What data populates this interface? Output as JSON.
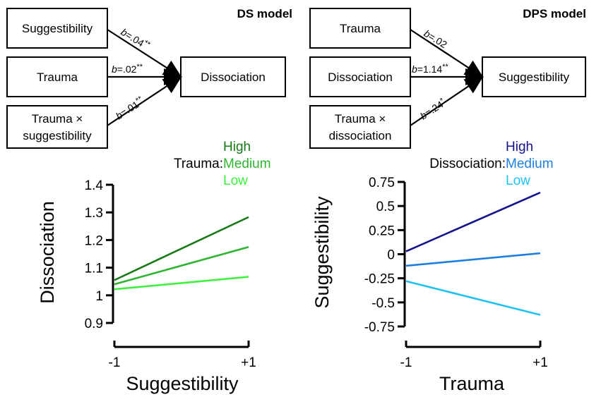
{
  "colors": {
    "trauma_high": "#177a17",
    "trauma_medium": "#2fb52f",
    "trauma_low": "#3ff23f",
    "dissoc_high": "#14148c",
    "dissoc_medium": "#1f7fe0",
    "dissoc_low": "#1fc2f2"
  },
  "ds_model": {
    "title": "DS model",
    "inputs": [
      "Suggestibility",
      "Trauma",
      "Trauma ×",
      "suggestibility"
    ],
    "outcome": "Dissociation",
    "paths": [
      {
        "b": "b",
        "value": "=.04",
        "sig": "**"
      },
      {
        "b": "b",
        "value": "=.02",
        "sig": "**"
      },
      {
        "b": "b",
        "value": "=.01",
        "sig": "**"
      }
    ]
  },
  "dps_model": {
    "title": "DPS model",
    "inputs": [
      "Trauma",
      "Dissociation",
      "Trauma ×",
      "dissociation"
    ],
    "outcome": "Suggestibility",
    "paths": [
      {
        "b": "b",
        "value": "=.02",
        "sig": ""
      },
      {
        "b": "b",
        "value": "=1.14",
        "sig": "**"
      },
      {
        "b": "b",
        "value": "=.24",
        "sig": "*"
      }
    ]
  },
  "chart_data": [
    {
      "type": "line",
      "xlabel": "Suggestibility",
      "ylabel": "Dissociation",
      "x": [
        -1,
        1
      ],
      "x_tick_labels": [
        "-1",
        "+1"
      ],
      "y_ticks": [
        0.9,
        1,
        1.1,
        1.2,
        1.3,
        1.4
      ],
      "y_tick_labels": [
        "0.9",
        "1",
        "1.1",
        "1.2",
        "1.3",
        "1.4"
      ],
      "ylim": [
        0.9,
        1.4
      ],
      "legend_title": "Trauma:",
      "legend_placement": "top",
      "series": [
        {
          "name": "High",
          "values": [
            1.055,
            1.283
          ],
          "color": "#177a17"
        },
        {
          "name": "Medium",
          "values": [
            1.04,
            1.175
          ],
          "color": "#2fb52f"
        },
        {
          "name": "Low",
          "values": [
            1.022,
            1.067
          ],
          "color": "#3ff23f"
        }
      ]
    },
    {
      "type": "line",
      "xlabel": "Trauma",
      "ylabel": "Suggestibility",
      "x": [
        -1,
        1
      ],
      "x_tick_labels": [
        "-1",
        "+1"
      ],
      "y_ticks": [
        -0.75,
        -0.5,
        -0.25,
        0,
        0.25,
        0.5,
        0.75
      ],
      "y_tick_labels": [
        "-0.75",
        "-0.5",
        "-0.25",
        "0",
        "0.25",
        "0.5",
        "0.75"
      ],
      "ylim": [
        -0.75,
        0.75
      ],
      "legend_title": "Dissociation:",
      "legend_placement": "top",
      "series": [
        {
          "name": "High",
          "values": [
            0.03,
            0.64
          ],
          "color": "#14148c"
        },
        {
          "name": "Medium",
          "values": [
            -0.12,
            0.01
          ],
          "color": "#1f7fe0"
        },
        {
          "name": "Low",
          "values": [
            -0.28,
            -0.63
          ],
          "color": "#1fc2f2"
        }
      ]
    }
  ]
}
